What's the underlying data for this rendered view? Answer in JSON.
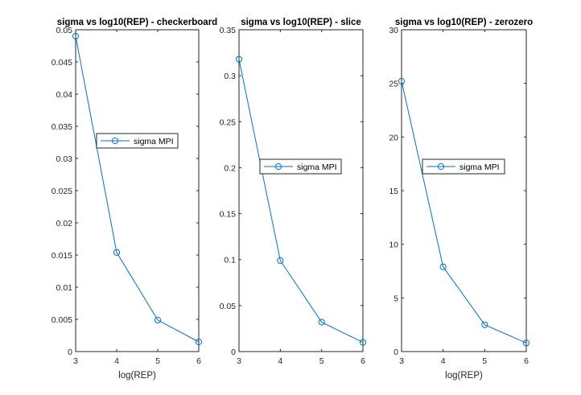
{
  "chart_data": [
    {
      "type": "line",
      "title": "sigma vs log10(REP) - checkerboard",
      "xlabel": "log(REP)",
      "ylabel": "",
      "xlim": [
        3,
        6
      ],
      "ylim": [
        0,
        0.05
      ],
      "xticks": [
        3,
        4,
        5,
        6
      ],
      "yticks": [
        0,
        0.005,
        0.01,
        0.015,
        0.02,
        0.025,
        0.03,
        0.035,
        0.04,
        0.045,
        0.05
      ],
      "ytick_labels": [
        "0",
        "0.005",
        "0.01",
        "0.015",
        "0.02",
        "0.025",
        "0.03",
        "0.035",
        "0.04",
        "0.045",
        "0.05"
      ],
      "legend_location": "center",
      "series": [
        {
          "name": "sigma MPI",
          "marker": "circle",
          "color": "#0072BD",
          "x": [
            3,
            4,
            5,
            6
          ],
          "y": [
            0.049,
            0.0154,
            0.0049,
            0.0015
          ]
        }
      ]
    },
    {
      "type": "line",
      "title": "sigma vs log10(REP) - slice",
      "xlabel": "",
      "ylabel": "",
      "xlim": [
        3,
        6
      ],
      "ylim": [
        0,
        0.35
      ],
      "xticks": [
        3,
        4,
        5,
        6
      ],
      "yticks": [
        0,
        0.05,
        0.1,
        0.15,
        0.2,
        0.25,
        0.3,
        0.35
      ],
      "ytick_labels": [
        "0",
        "0.05",
        "0.1",
        "0.15",
        "0.2",
        "0.25",
        "0.3",
        "0.35"
      ],
      "legend_location": "center",
      "series": [
        {
          "name": "sigma MPI",
          "marker": "circle",
          "color": "#0072BD",
          "x": [
            3,
            4,
            5,
            6
          ],
          "y": [
            0.318,
            0.099,
            0.032,
            0.01
          ]
        }
      ]
    },
    {
      "type": "line",
      "title": "sigma vs log10(REP) - zerozero",
      "xlabel": "log(REP)",
      "ylabel": "",
      "xlim": [
        3,
        6
      ],
      "ylim": [
        0,
        30
      ],
      "xticks": [
        3,
        4,
        5,
        6
      ],
      "yticks": [
        0,
        5,
        10,
        15,
        20,
        25,
        30
      ],
      "ytick_labels": [
        "0",
        "5",
        "10",
        "15",
        "20",
        "25",
        "30"
      ],
      "legend_location": "center",
      "series": [
        {
          "name": "sigma MPI",
          "marker": "circle",
          "color": "#0072BD",
          "x": [
            3,
            4,
            5,
            6
          ],
          "y": [
            25.2,
            7.9,
            2.5,
            0.8
          ]
        }
      ]
    }
  ]
}
